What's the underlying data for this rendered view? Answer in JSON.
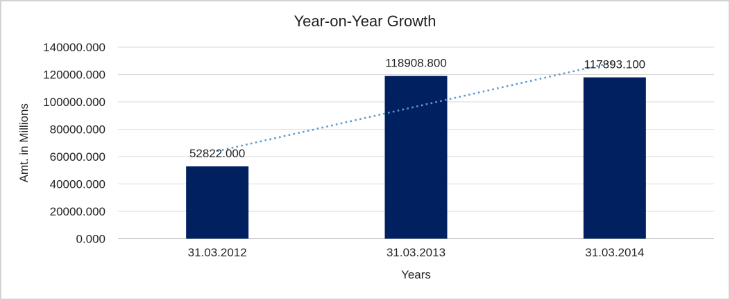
{
  "chart_data": {
    "type": "bar",
    "title": "Year-on-Year Growth",
    "xlabel": "Years",
    "ylabel": "Amt. in Millions",
    "categories": [
      "31.03.2012",
      "31.03.2013",
      "31.03.2014"
    ],
    "values": [
      52822.0,
      118908.8,
      117893.1
    ],
    "data_labels": [
      "52822.000",
      "118908.800",
      "117893.100"
    ],
    "y_tick_labels": [
      "0.000",
      "20000.000",
      "40000.000",
      "60000.000",
      "80000.000",
      "100000.000",
      "120000.000",
      "140000.000"
    ],
    "y_tick_step": 20000,
    "ylim": [
      0,
      140000
    ],
    "grid": "horizontal",
    "legend": "none",
    "bar_color": "#002060",
    "gridline_color": "#d9d9d9",
    "axis_line_color": "#bfbfbf",
    "trendline": {
      "kind": "linear",
      "style": "dotted",
      "color": "#5b9bd5"
    }
  }
}
